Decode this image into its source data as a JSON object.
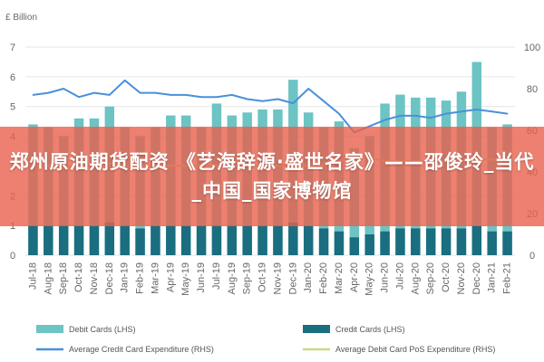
{
  "banner": {
    "text": "郑州原油期货配资 《艺海辞源·盛世名家》——邵俊玲_当代_中国_国家博物馆"
  },
  "colors": {
    "debit": "#6cc4c4",
    "credit": "#1a6e80",
    "avg_credit": "#4a90d9",
    "avg_debit": "#c7d98a",
    "grid": "#e6e6e6",
    "banner": "#e8604c"
  },
  "chart_data": {
    "type": "bar",
    "ylabel_left": "£ Billion",
    "ylim_left": [
      0,
      7
    ],
    "yticks_left": [
      "0",
      "1",
      "2",
      "3",
      "4",
      "5",
      "6",
      "7"
    ],
    "ylim_right": [
      0,
      100
    ],
    "yticks_right": [
      "0",
      "20",
      "40",
      "60",
      "80",
      "100"
    ],
    "categories": [
      "Jul-18",
      "Aug-18",
      "Sep-18",
      "Oct-18",
      "Nov-18",
      "Dec-18",
      "Jan-19",
      "Feb-19",
      "Mar-19",
      "Apr-19",
      "May-19",
      "Jun-19",
      "Jul-19",
      "Aug-19",
      "Sep-19",
      "Oct-19",
      "Nov-19",
      "Dec-19",
      "Jan-20",
      "Feb-20",
      "Mar-20",
      "Apr-20",
      "May-20",
      "Jun-20",
      "Jul-20",
      "Aug-20",
      "Sep-20",
      "Oct-20",
      "Nov-20",
      "Dec-20",
      "Jan-21",
      "Feb-21"
    ],
    "series": [
      {
        "name": "Debit Cards (LHS)",
        "kind": "bar",
        "axis": "left",
        "values": [
          4.4,
          4.3,
          4.0,
          4.6,
          4.6,
          5.0,
          4.3,
          4.0,
          4.3,
          4.7,
          4.7,
          4.3,
          5.1,
          4.7,
          4.8,
          4.9,
          4.9,
          5.9,
          4.8,
          4.3,
          4.5,
          3.6,
          4.0,
          5.1,
          5.4,
          5.3,
          5.3,
          5.2,
          5.5,
          6.5,
          4.3,
          4.4
        ]
      },
      {
        "name": "Credit Cards (LHS)",
        "kind": "bar",
        "axis": "left",
        "values": [
          1.0,
          1.0,
          1.0,
          1.0,
          1.0,
          1.1,
          1.0,
          0.9,
          1.0,
          1.0,
          1.0,
          1.0,
          1.0,
          1.0,
          1.0,
          1.0,
          1.0,
          1.1,
          1.0,
          0.9,
          0.8,
          0.6,
          0.7,
          0.8,
          0.9,
          0.9,
          0.9,
          0.9,
          0.9,
          1.0,
          0.8,
          0.8
        ]
      },
      {
        "name": "Average Credit Card Expenditure (RHS)",
        "kind": "line",
        "axis": "right",
        "values": [
          77,
          78,
          80,
          76,
          78,
          77,
          84,
          78,
          78,
          77,
          77,
          76,
          76,
          77,
          75,
          74,
          75,
          73,
          80,
          74,
          68,
          59,
          62,
          65,
          67,
          67,
          66,
          68,
          69,
          70,
          69,
          68
        ]
      },
      {
        "name": "Average Debit Card PoS Expenditure (RHS)",
        "kind": "line",
        "axis": "right",
        "values": [
          43,
          43,
          42,
          43,
          43,
          44,
          43,
          43,
          43,
          43,
          43,
          43,
          43,
          43,
          43,
          43,
          43,
          43,
          43,
          43,
          45,
          48,
          47,
          45,
          45,
          45,
          45,
          45,
          45,
          46,
          46,
          45
        ]
      }
    ],
    "legend_position": "bottom",
    "grid": true
  }
}
